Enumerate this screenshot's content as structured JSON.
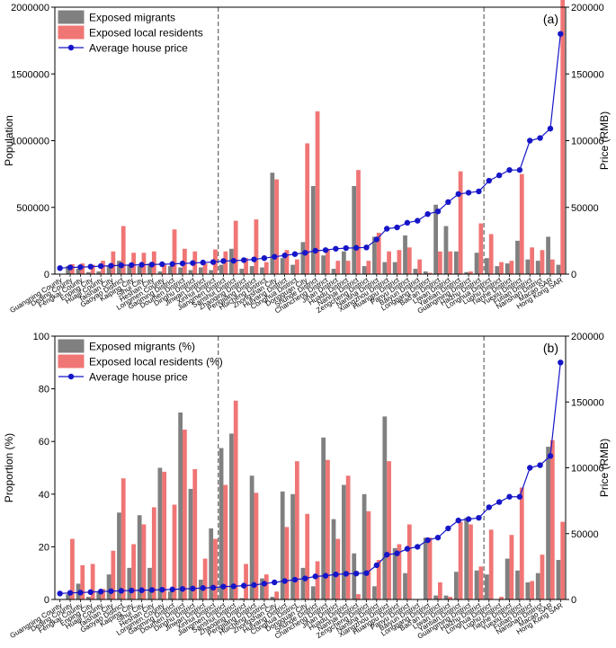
{
  "chart_data": [
    {
      "type": "bar",
      "panel_label": "(a)",
      "ylabel": "Population",
      "y2label": "Price (RMB)",
      "ylim": [
        0,
        2000000
      ],
      "y2lim": [
        0,
        200000
      ],
      "yticks": [
        "0",
        "500000",
        "1000000",
        "1500000",
        "2000000"
      ],
      "y2ticks": [
        "0",
        "50000",
        "100000",
        "150000",
        "200000"
      ],
      "legend_position": "top-left",
      "divider_after_index": [
        15,
        41
      ],
      "categories": [
        "Guangning County",
        "Deqing County",
        "Fengkai County",
        "Enping City",
        "Huaiji County",
        "Taishan City",
        "Gaoyao District",
        "Kaiping City",
        "Sihui City",
        "Heshan City",
        "Longmen County",
        "Gaoming District",
        "Doumen District",
        "Dinghu District",
        "Jinwan District",
        "Xinhui District",
        "Jiangmen District",
        "Sanshui District",
        "Zhaoqing District",
        "Pengjiang District",
        "Huicheng District",
        "Zhongshan City",
        "Huiyang District",
        "Conghua District",
        "Dongguan City",
        "Shunde District",
        "Chancheng District",
        "Jinan District",
        "Huadu District",
        "Nanhai District",
        "Zengcheng District",
        "Nansha District",
        "Xiangzhou District",
        "Huangpu District",
        "Panyu District",
        "Baiyun District",
        "Longgang District",
        "Bao'an District",
        "Liwan District",
        "Yantian District",
        "Guangming District",
        "Haizhu District",
        "Longhua District",
        "Luohu District",
        "Tianhe District",
        "Yuexiu District",
        "Futian District",
        "Nanshan District",
        "Macao SAR",
        "Hong Kong SAR"
      ],
      "series": [
        {
          "name": "Exposed migrants",
          "axis": "left",
          "color": "#808080",
          "values": [
            0,
            60000,
            40000,
            15000,
            20000,
            60000,
            100000,
            70000,
            60000,
            80000,
            20000,
            60000,
            50000,
            30000,
            50000,
            30000,
            70000,
            190000,
            40000,
            60000,
            50000,
            760000,
            120000,
            70000,
            240000,
            660000,
            140000,
            40000,
            170000,
            660000,
            60000,
            280000,
            90000,
            90000,
            290000,
            40000,
            20000,
            520000,
            360000,
            170000,
            15000,
            160000,
            120000,
            60000,
            80000,
            250000,
            110000,
            100000,
            280000,
            70000
          ]
        },
        {
          "name": "Exposed local residents",
          "axis": "left",
          "color": "#f07575",
          "values": [
            0,
            75000,
            80000,
            70000,
            100000,
            170000,
            360000,
            160000,
            160000,
            170000,
            70000,
            335000,
            190000,
            170000,
            80000,
            185000,
            170000,
            400000,
            120000,
            410000,
            90000,
            710000,
            180000,
            110000,
            980000,
            1220000,
            190000,
            100000,
            100000,
            780000,
            100000,
            310000,
            170000,
            180000,
            200000,
            110000,
            10000,
            170000,
            170000,
            770000,
            20000,
            380000,
            300000,
            90000,
            100000,
            750000,
            200000,
            180000,
            110000,
            2080000
          ]
        },
        {
          "name": "Average house price",
          "axis": "right",
          "color": "#1616c8",
          "values": [
            4500,
            5000,
            5200,
            5600,
            6000,
            6300,
            6600,
            6800,
            7000,
            7200,
            7400,
            7600,
            8000,
            8300,
            8700,
            9000,
            9800,
            10000,
            10500,
            11000,
            12000,
            13000,
            14000,
            15000,
            16000,
            17500,
            18000,
            19000,
            19500,
            19700,
            20000,
            26000,
            34000,
            35000,
            38500,
            40000,
            45000,
            47000,
            54000,
            60000,
            61000,
            62000,
            70000,
            74000,
            78000,
            78000,
            100000,
            102000,
            109000,
            180000
          ]
        }
      ]
    },
    {
      "type": "bar",
      "panel_label": "(b)",
      "ylabel": "Proportion (%)",
      "y2label": "Price (RMB)",
      "ylim": [
        0,
        100
      ],
      "y2lim": [
        0,
        200000
      ],
      "yticks": [
        "0",
        "20",
        "40",
        "60",
        "80",
        "100"
      ],
      "y2ticks": [
        "0",
        "50000",
        "100000",
        "150000",
        "200000"
      ],
      "legend_position": "top-left",
      "divider_after_index": [
        15,
        41
      ],
      "categories": [
        "Guangning County",
        "Deqing County",
        "Fengkai County",
        "Enping City",
        "Huaiji County",
        "Taishan City",
        "Gaoyao District",
        "Kaiping City",
        "Sihui City",
        "Heshan City",
        "Longmen County",
        "Gaoming District",
        "Doumen District",
        "Dinghu District",
        "Jinwan District",
        "Xinhui District",
        "Jiangmen District",
        "Sanshui District",
        "Zhaoqing District",
        "Pengjiang District",
        "Huicheng District",
        "Zhongshan City",
        "Huiyang District",
        "Conghua District",
        "Dongguan City",
        "Shunde District",
        "Chancheng District",
        "Jinan District",
        "Huadu District",
        "Nanhai District",
        "Zengcheng District",
        "Nansha District",
        "Xiangzhou District",
        "Huangpu District",
        "Panyu District",
        "Baiyun District",
        "Longgang District",
        "Bao'an District",
        "Liwan District",
        "Yantian District",
        "Guangming District",
        "Haizhu District",
        "Longhua District",
        "Luohu District",
        "Tianhe District",
        "Yuexiu District",
        "Futian District",
        "Nanshan District",
        "Macao SAR",
        "Hong Kong SAR"
      ],
      "series": [
        {
          "name": "Exposed migrants (%)",
          "axis": "left",
          "color": "#808080",
          "values": [
            0,
            2,
            6,
            1,
            3,
            9.5,
            33,
            12,
            32,
            12,
            50,
            3,
            71,
            42,
            7.5,
            27,
            57.5,
            63,
            0.5,
            47,
            8,
            1,
            41,
            40,
            12,
            5,
            61.5,
            30.5,
            43.5,
            17.5,
            40,
            5,
            69.5,
            19.5,
            10,
            0,
            23.5,
            1.5,
            1.5,
            10.5,
            31,
            11,
            9.5,
            0,
            15.5,
            11,
            6.5,
            10,
            58,
            15
          ]
        },
        {
          "name": "Exposed local residents (%)",
          "axis": "left",
          "color": "#f07575",
          "values": [
            0,
            23,
            13,
            13.5,
            4,
            18.5,
            46,
            21,
            28.5,
            35,
            48.5,
            36,
            64.5,
            49.5,
            15.5,
            23,
            43.5,
            75.5,
            13.5,
            40.5,
            9.5,
            3,
            27.5,
            52.5,
            32.5,
            14.5,
            53,
            23,
            47,
            2,
            33.5,
            15,
            52.5,
            21,
            28.5,
            0,
            23.5,
            6.5,
            1,
            29.5,
            28.5,
            12.5,
            26.5,
            1,
            24.5,
            42.5,
            7,
            17,
            60.5,
            29.5
          ]
        },
        {
          "name": "Average house price",
          "axis": "right",
          "color": "#1616c8",
          "values": [
            4500,
            5000,
            5200,
            5600,
            6000,
            6300,
            6600,
            6800,
            7000,
            7200,
            7400,
            7600,
            8000,
            8300,
            8700,
            9000,
            9800,
            10000,
            10500,
            11000,
            12000,
            13000,
            14000,
            15000,
            16000,
            17500,
            18000,
            19000,
            19500,
            19700,
            20000,
            26000,
            34000,
            35000,
            38500,
            40000,
            45000,
            47000,
            54000,
            60000,
            61000,
            62000,
            70000,
            74000,
            78000,
            78000,
            100000,
            102000,
            109000,
            180000
          ]
        }
      ]
    }
  ]
}
